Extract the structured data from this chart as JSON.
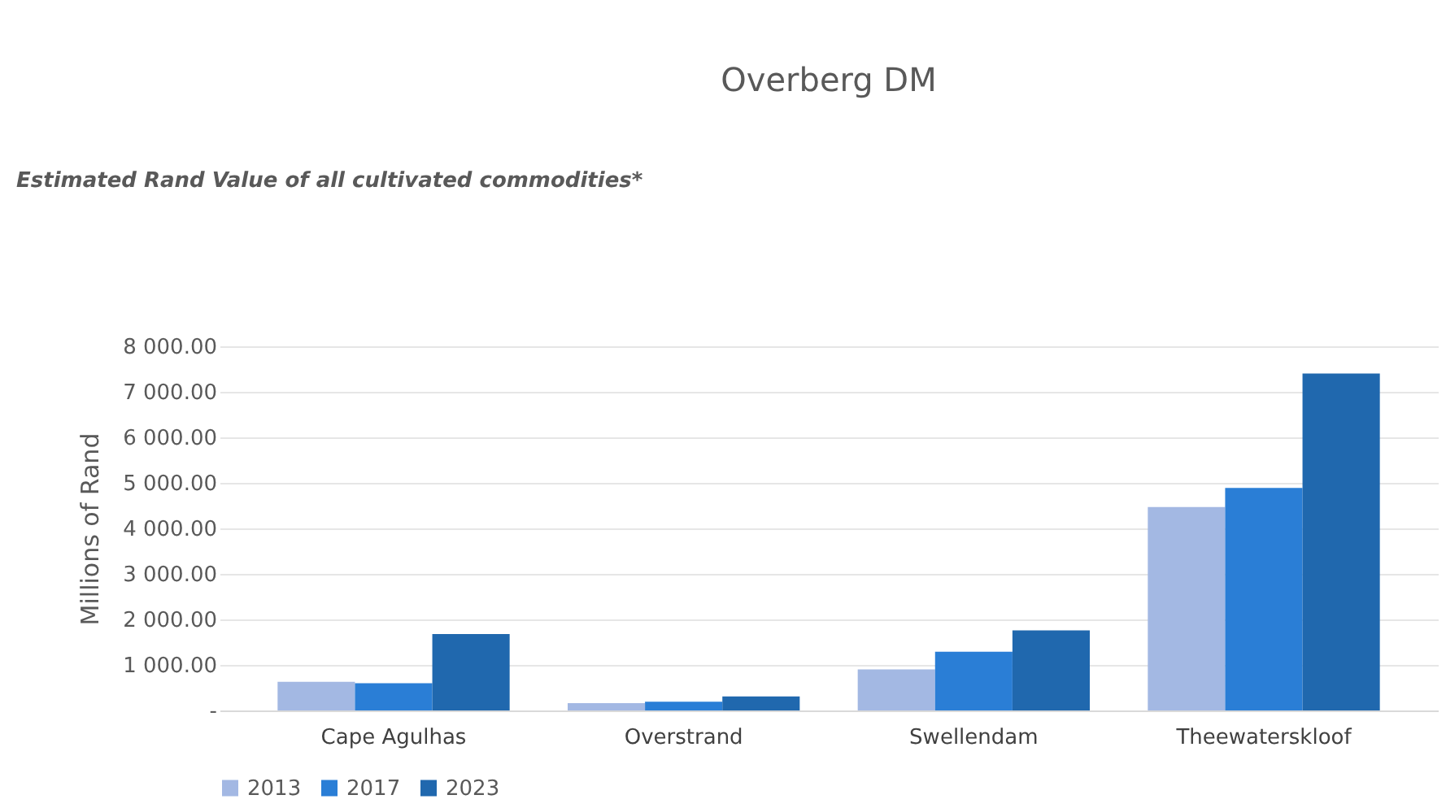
{
  "chart_data": {
    "type": "bar",
    "title": "Overberg DM",
    "ylabel": "Millions of Rand",
    "annotations": [
      "Estimated Rand Value of all cultivated commodities*"
    ],
    "categories": [
      "Cape Agulhas",
      "Overstrand",
      "Swellendam",
      "Theewaterskloof"
    ],
    "series": [
      {
        "name": "2013",
        "color": "#a3b8e3",
        "values": [
          630,
          160,
          900,
          4470
        ]
      },
      {
        "name": "2017",
        "color": "#2a7ed6",
        "values": [
          600,
          190,
          1290,
          4890
        ]
      },
      {
        "name": "2023",
        "color": "#2068ae",
        "values": [
          1680,
          310,
          1760,
          7400
        ]
      }
    ],
    "ylim": [
      0,
      8000
    ],
    "yticks": [
      {
        "value": 0,
        "label": "-"
      },
      {
        "value": 1000,
        "label": "1 000.00"
      },
      {
        "value": 2000,
        "label": "2 000.00"
      },
      {
        "value": 3000,
        "label": "3 000.00"
      },
      {
        "value": 4000,
        "label": "4 000.00"
      },
      {
        "value": 5000,
        "label": "5 000.00"
      },
      {
        "value": 6000,
        "label": "6 000.00"
      },
      {
        "value": 7000,
        "label": "7 000.00"
      },
      {
        "value": 8000,
        "label": "8 000.00"
      }
    ],
    "grid": "y",
    "legend": "bottom"
  }
}
